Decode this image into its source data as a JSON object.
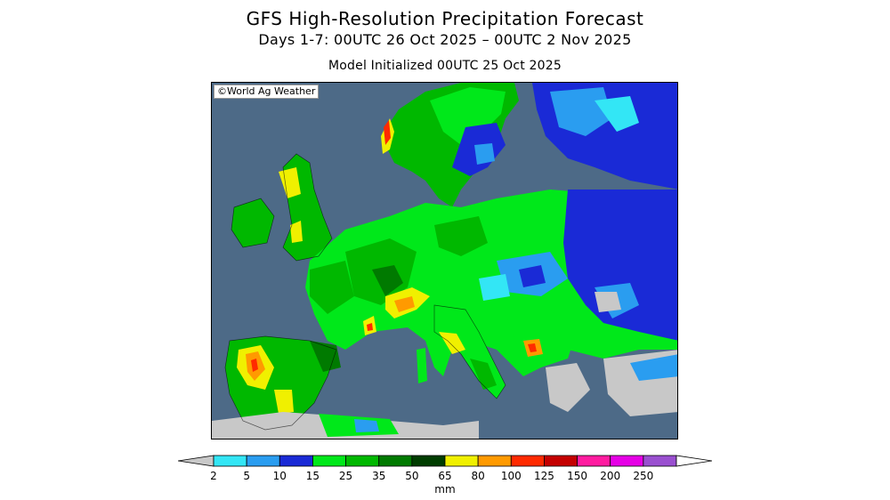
{
  "header": {
    "title": "GFS High-Resolution Precipitation Forecast",
    "period": "Days 1-7: 00UTC 26 Oct 2025 – 00UTC 2 Nov 2025",
    "init": "Model Initialized 00UTC 25 Oct 2025"
  },
  "map": {
    "copyright": "©World Ag Weather",
    "ocean_color": "#4d6a87"
  },
  "legend": {
    "unit": "mm",
    "ticks": [
      "2",
      "5",
      "10",
      "15",
      "25",
      "35",
      "50",
      "65",
      "80",
      "100",
      "125",
      "150",
      "200",
      "250"
    ],
    "colors": [
      "#c8c8c8",
      "#33e6f5",
      "#2a9df0",
      "#1a2ad6",
      "#00e81a",
      "#00b800",
      "#007a00",
      "#003d00",
      "#f0f000",
      "#ff9a00",
      "#ff2a00",
      "#c40000",
      "#ff1ca0",
      "#e600e6",
      "#9a50d0",
      "#ffffff"
    ]
  }
}
